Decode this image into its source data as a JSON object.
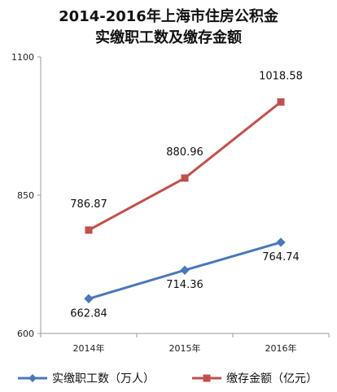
{
  "chart_data": {
    "type": "line",
    "title": "2014-2016年上海市住房公积金",
    "subtitle": "实缴职工数及缴存金额",
    "categories": [
      "2014年",
      "2015年",
      "2016年"
    ],
    "ylim": [
      600,
      1100
    ],
    "yticks": [
      600,
      850,
      1100
    ],
    "grid": false,
    "legend_position": "bottom",
    "series": [
      {
        "name": "实缴职工数（万人）",
        "values": [
          662.84,
          714.36,
          764.74
        ],
        "labels": [
          "662.84",
          "714.36",
          "764.74"
        ],
        "color": "#4a78b8",
        "marker": "diamond",
        "label_side": "below"
      },
      {
        "name": "缴存金额（亿元）",
        "values": [
          786.87,
          880.96,
          1018.58
        ],
        "labels": [
          "786.87",
          "880.96",
          "1018.58"
        ],
        "color": "#c0504d",
        "marker": "square",
        "label_side": "above"
      }
    ]
  }
}
